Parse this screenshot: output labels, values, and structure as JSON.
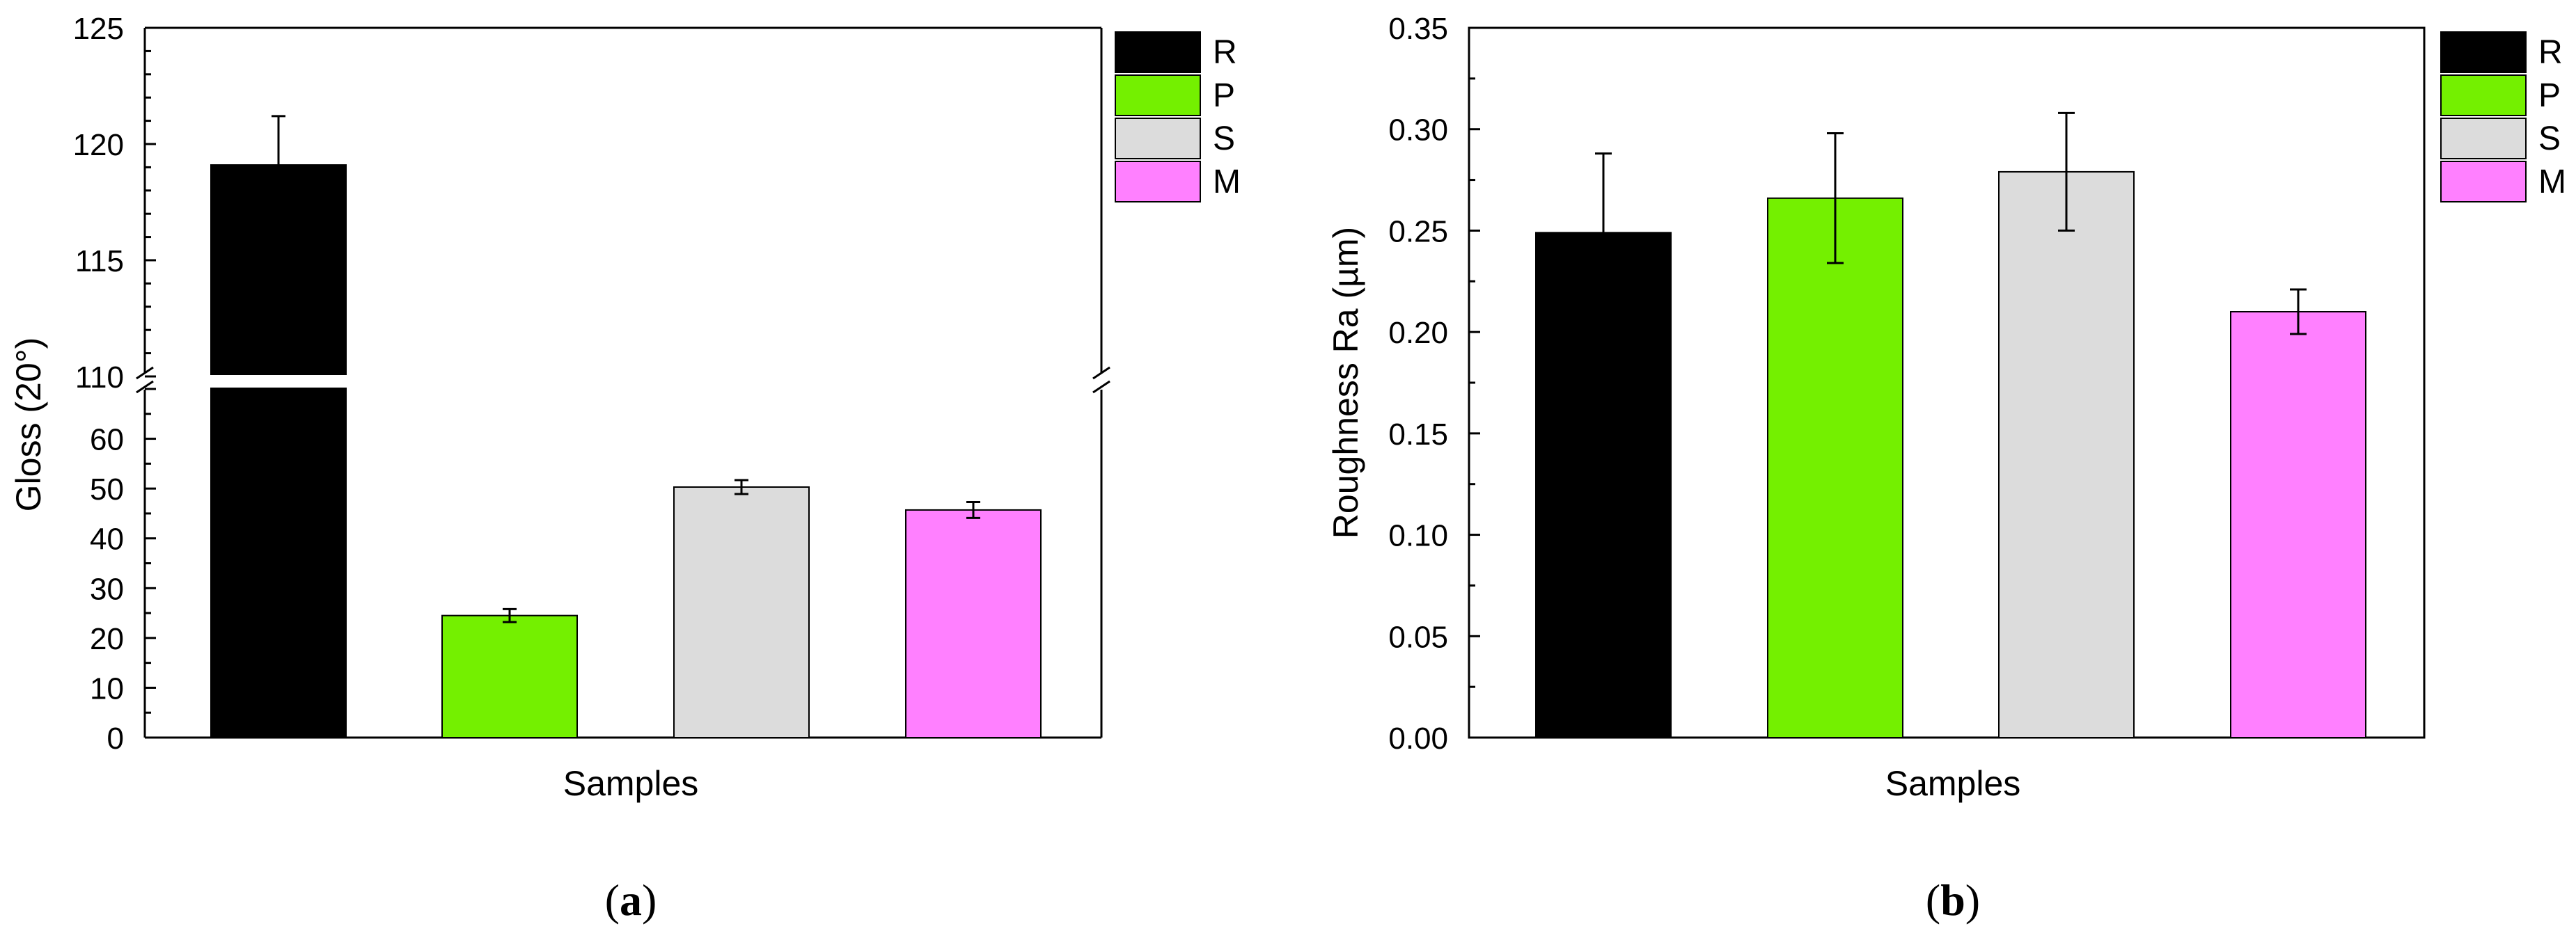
{
  "panel_a": {
    "xlabel": "Samples",
    "ylabel": "Gloss (20°)",
    "caption_open": "(",
    "caption_letter": "a",
    "caption_close": ")"
  },
  "panel_b": {
    "xlabel": "Samples",
    "ylabel": "Roughness Ra (µm)",
    "caption_open": "(",
    "caption_letter": "b",
    "caption_close": ")"
  },
  "legend": [
    {
      "label": "R",
      "color": "#000000"
    },
    {
      "label": "P",
      "color": "#74f000"
    },
    {
      "label": "S",
      "color": "#dcdcdc"
    },
    {
      "label": "M",
      "color": "#ff80ff"
    }
  ],
  "chart_data": [
    {
      "type": "bar",
      "title": "",
      "xlabel": "Samples",
      "ylabel": "Gloss (20°)",
      "categories": [
        "R",
        "P",
        "S",
        "M"
      ],
      "values": [
        119.1,
        24.5,
        50.3,
        45.7
      ],
      "errors": [
        2.1,
        1.3,
        1.4,
        1.6
      ],
      "colors": [
        "#000000",
        "#74f000",
        "#dcdcdc",
        "#ff80ff"
      ],
      "axis_break": {
        "lower": [
          0,
          70
        ],
        "upper": [
          110,
          125
        ]
      },
      "yticks_lower": [
        0,
        10,
        20,
        30,
        40,
        50,
        60
      ],
      "yticks_upper": [
        110,
        115,
        120,
        125
      ],
      "legend_position": "right"
    },
    {
      "type": "bar",
      "title": "",
      "xlabel": "Samples",
      "ylabel": "Roughness Ra (µm)",
      "categories": [
        "R",
        "P",
        "S",
        "M"
      ],
      "values": [
        0.249,
        0.266,
        0.279,
        0.21
      ],
      "errors": [
        0.039,
        0.032,
        0.029,
        0.011
      ],
      "colors": [
        "#000000",
        "#74f000",
        "#dcdcdc",
        "#ff80ff"
      ],
      "ylim": [
        0,
        0.35
      ],
      "yticks": [
        "0.00",
        "0.05",
        "0.10",
        "0.15",
        "0.20",
        "0.25",
        "0.30",
        "0.35"
      ],
      "legend_position": "right"
    }
  ]
}
